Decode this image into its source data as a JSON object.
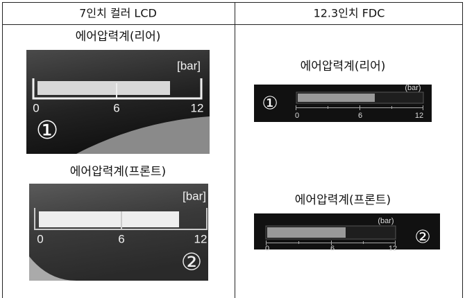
{
  "table": {
    "headers": [
      "7인치 컬러 LCD",
      "12.3인치 FDC"
    ]
  },
  "panels": [
    {
      "title": "에어압력계(리어)",
      "unit": "[bar]",
      "scale": [
        0,
        6,
        12
      ],
      "badge": "①"
    },
    {
      "title": "에어압력계(프론트)",
      "unit": "[bar]",
      "scale": [
        0,
        6,
        12
      ],
      "badge": "②"
    },
    {
      "title": "에어압력계(리어)",
      "unit": "(bar)",
      "scale": [
        0,
        6,
        12
      ],
      "badge": "①"
    },
    {
      "title": "에어압력계(프론트)",
      "unit": "(bar)",
      "scale": [
        0,
        6,
        12
      ],
      "badge": "②"
    }
  ]
}
